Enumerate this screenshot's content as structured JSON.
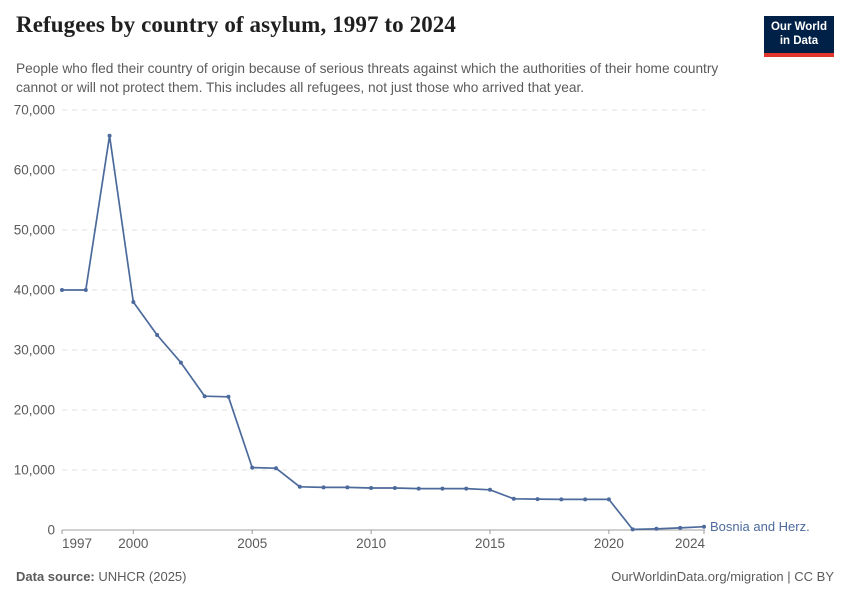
{
  "header": {
    "title": "Refugees by country of asylum, 1997 to 2024",
    "logo_line1": "Our World",
    "logo_line2": "in Data"
  },
  "subtitle": "People who fled their country of origin because of serious threats against which the authorities of their home country cannot or will not protect them. This includes all refugees, not just those who arrived that year.",
  "footer": {
    "source_label": "Data source:",
    "source_value": " UNHCR (2025)",
    "credit": "OurWorldinData.org/migration | CC BY"
  },
  "colors": {
    "line": "#4c6a9c",
    "logo_navy": "#002147",
    "logo_red": "#e0362c",
    "grid": "#e0e0e0",
    "axis": "#a1a1a1",
    "tick": "#999999",
    "tick_text": "#5b5b5b"
  },
  "chart_data": {
    "type": "line",
    "title": "Refugees by country of asylum, 1997 to 2024",
    "xlabel": "",
    "ylabel": "",
    "grid": true,
    "legend_position": "end-of-line",
    "xlim": [
      1997,
      2024
    ],
    "ylim": [
      0,
      70000
    ],
    "x_ticks": [
      1997,
      2000,
      2005,
      2010,
      2015,
      2020,
      2024
    ],
    "y_ticks": [
      0,
      10000,
      20000,
      30000,
      40000,
      50000,
      60000,
      70000
    ],
    "x": [
      1997,
      1998,
      1999,
      2000,
      2001,
      2002,
      2003,
      2004,
      2005,
      2006,
      2007,
      2008,
      2009,
      2010,
      2011,
      2012,
      2013,
      2014,
      2015,
      2016,
      2017,
      2018,
      2019,
      2020,
      2021,
      2022,
      2023,
      2024
    ],
    "series": [
      {
        "name": "Bosnia and Herz.",
        "values": [
          40000,
          40000,
          65700,
          38000,
          32500,
          27900,
          22300,
          22200,
          10400,
          10300,
          7200,
          7100,
          7100,
          7000,
          7000,
          6900,
          6900,
          6900,
          6700,
          5200,
          5150,
          5100,
          5100,
          5100,
          100,
          200,
          350,
          550
        ]
      }
    ]
  }
}
